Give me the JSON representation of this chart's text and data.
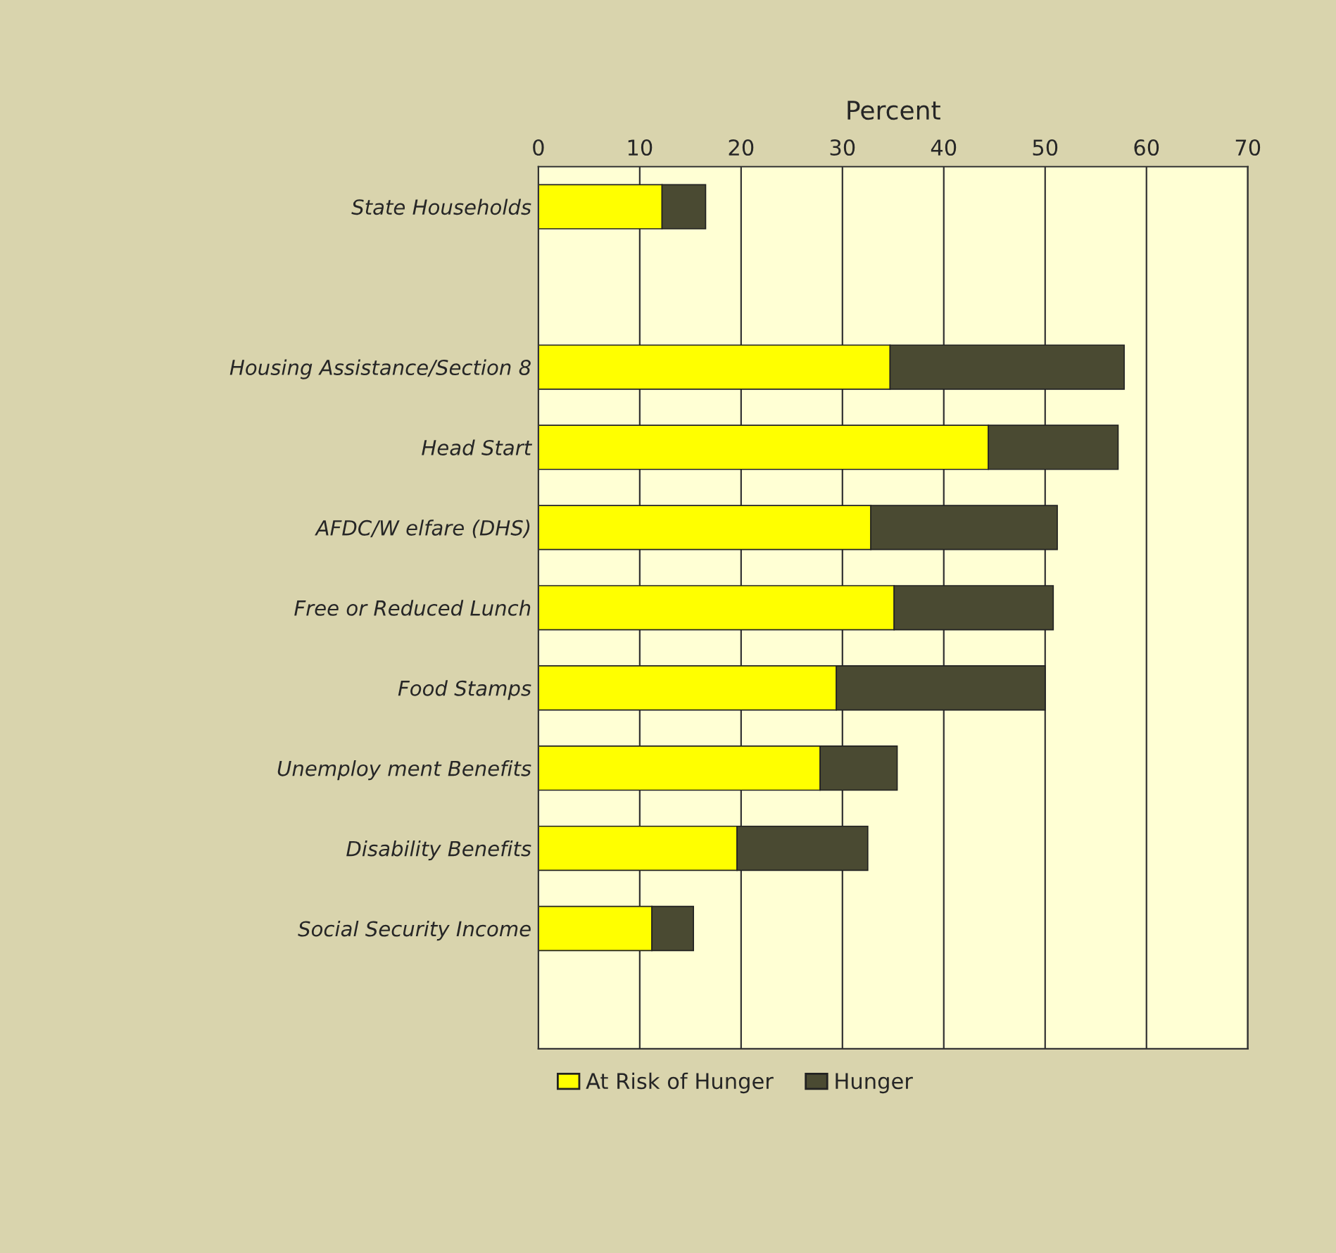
{
  "chart_data": {
    "type": "bar",
    "orientation": "horizontal",
    "stacked": true,
    "xlabel": "Percent",
    "categories": [
      "State Households",
      null,
      "Housing Assistance/Section 8",
      "Head Start",
      "AFDC/W elfare (DHS)",
      "Free or Reduced Lunch",
      "Food Stamps",
      "Unemploy ment Benefits",
      "Disability Benefits",
      "Social Security Income",
      null
    ],
    "series": [
      {
        "name": "At Risk of Hunger",
        "color": "#ffff00",
        "values": [
          12.2,
          null,
          34.7,
          44.4,
          32.8,
          35.1,
          29.4,
          27.8,
          19.6,
          11.2,
          null
        ]
      },
      {
        "name": "Hunger",
        "color": "#4a4a32",
        "values": [
          4.3,
          null,
          23.1,
          12.8,
          18.4,
          15.7,
          20.6,
          7.6,
          12.9,
          4.1,
          null
        ]
      }
    ],
    "xlim": [
      0,
      70
    ],
    "xticks": [
      0,
      10,
      20,
      30,
      40,
      50,
      60,
      70
    ],
    "grid": "x",
    "legend": "bottom"
  }
}
